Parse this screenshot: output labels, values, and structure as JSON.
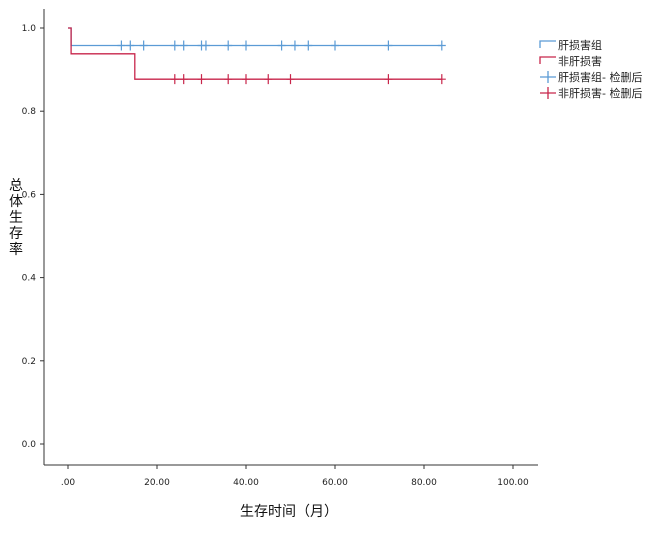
{
  "chart_data": {
    "type": "line",
    "subtype": "kaplan-meier survival curve",
    "xlabel": "生存时间（月）",
    "ylabel": "总体生存率",
    "xlim": [
      -5,
      105
    ],
    "ylim": [
      -0.05,
      1.05
    ],
    "x_ticks": [
      0,
      20,
      40,
      60,
      80,
      100
    ],
    "x_tick_labels": [
      ".00",
      "20.00",
      "40.00",
      "60.00",
      "80.00",
      "100.00"
    ],
    "y_ticks": [
      0,
      0.2,
      0.4,
      0.6,
      0.8,
      1.0
    ],
    "y_tick_labels": [
      "0.0",
      "0.2",
      "0.4",
      "0.6",
      "0.8",
      "1.0"
    ],
    "grid": false,
    "legend_position": "top-right",
    "series": [
      {
        "name": "肝损害组",
        "color": "#5b9bd5",
        "steps": [
          [
            0,
            1.0
          ],
          [
            0.7,
            1.0
          ],
          [
            0.7,
            0.958
          ],
          [
            84,
            0.958
          ]
        ],
        "censor_label": "肝损害组- 检删后",
        "censored_x": [
          12,
          14,
          17,
          24,
          26,
          30,
          31,
          36,
          40,
          48,
          51,
          54,
          60,
          72,
          84
        ],
        "censored_y": 0.958
      },
      {
        "name": "非肝损害",
        "color": "#c8264b",
        "steps": [
          [
            0,
            1.0
          ],
          [
            0.7,
            1.0
          ],
          [
            0.7,
            0.938
          ],
          [
            15,
            0.938
          ],
          [
            15,
            0.877
          ],
          [
            84,
            0.877
          ]
        ],
        "censor_label": "非肝损害- 检删后",
        "censored_x": [
          24,
          26,
          30,
          36,
          40,
          45,
          50,
          72,
          84
        ],
        "censored_y": 0.877
      }
    ]
  }
}
